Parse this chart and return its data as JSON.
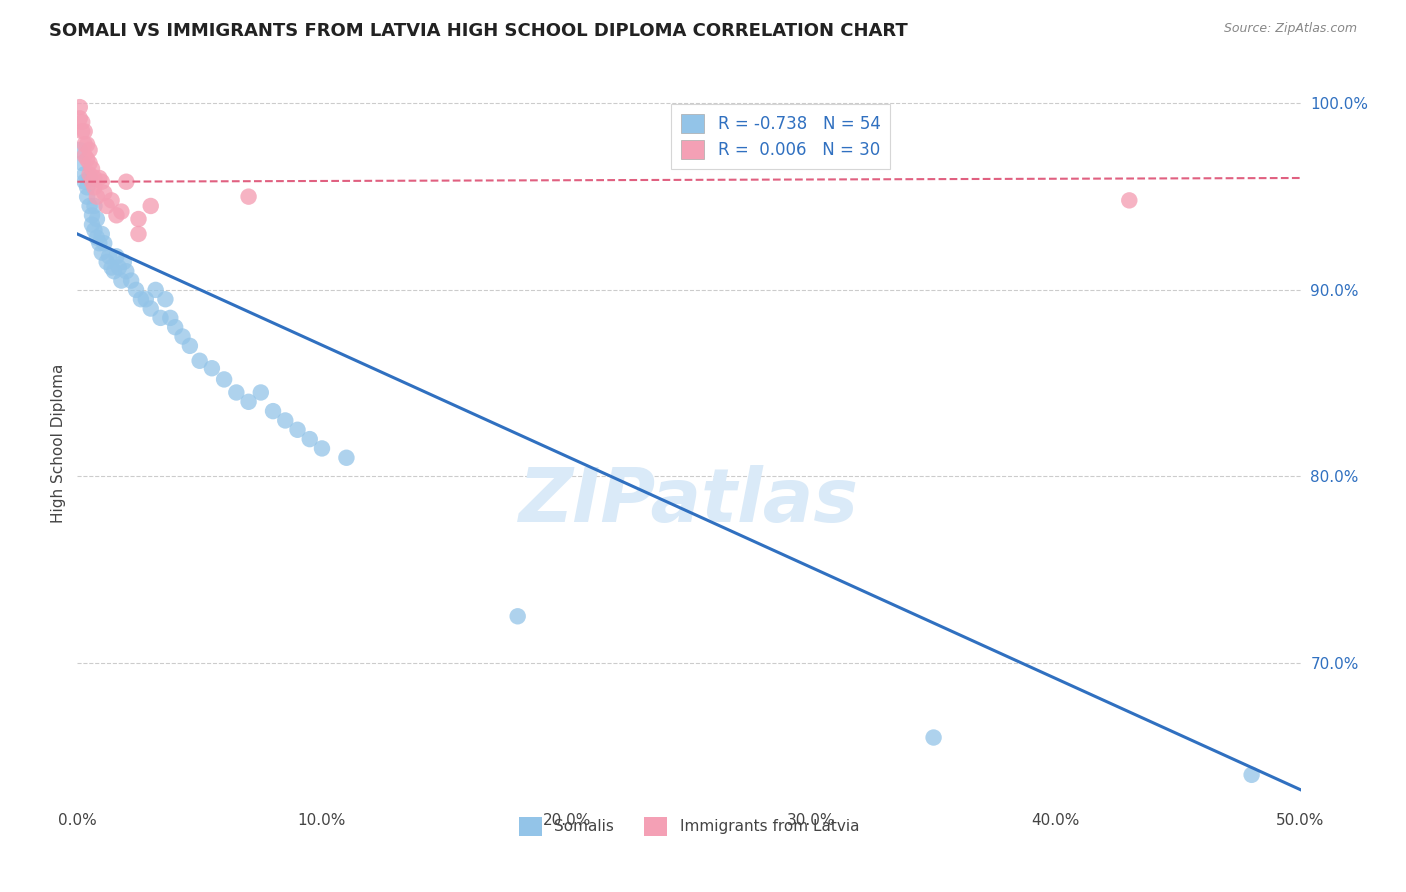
{
  "title": "SOMALI VS IMMIGRANTS FROM LATVIA HIGH SCHOOL DIPLOMA CORRELATION CHART",
  "source": "Source: ZipAtlas.com",
  "ylabel": "High School Diploma",
  "r_somali": -0.738,
  "n_somali": 54,
  "r_latvia": 0.006,
  "n_latvia": 30,
  "xlim": [
    0.0,
    0.5
  ],
  "ylim": [
    0.625,
    1.01
  ],
  "xticks": [
    0.0,
    0.1,
    0.2,
    0.3,
    0.4,
    0.5
  ],
  "xticklabels": [
    "0.0%",
    "10.0%",
    "20.0%",
    "30.0%",
    "40.0%",
    "50.0%"
  ],
  "yticks_right": [
    0.7,
    0.8,
    0.9,
    1.0
  ],
  "yticklabels_right": [
    "70.0%",
    "80.0%",
    "90.0%",
    "100.0%"
  ],
  "grid_color": "#cccccc",
  "blue_color": "#93c4e8",
  "pink_color": "#f4a0b5",
  "blue_line_color": "#3070c0",
  "pink_line_color": "#e06080",
  "watermark_color": "#daeaf8",
  "blue_trend_x0": 0.0,
  "blue_trend_y0": 0.93,
  "blue_trend_x1": 0.5,
  "blue_trend_y1": 0.632,
  "pink_trend_x0": 0.0,
  "pink_trend_y0": 0.958,
  "pink_trend_x1": 0.5,
  "pink_trend_y1": 0.96,
  "somali_x": [
    0.001,
    0.002,
    0.003,
    0.003,
    0.004,
    0.004,
    0.005,
    0.005,
    0.006,
    0.006,
    0.007,
    0.007,
    0.008,
    0.008,
    0.009,
    0.01,
    0.01,
    0.011,
    0.012,
    0.013,
    0.014,
    0.015,
    0.016,
    0.017,
    0.018,
    0.019,
    0.02,
    0.022,
    0.024,
    0.026,
    0.028,
    0.03,
    0.032,
    0.034,
    0.036,
    0.038,
    0.04,
    0.043,
    0.046,
    0.05,
    0.055,
    0.06,
    0.065,
    0.07,
    0.075,
    0.08,
    0.085,
    0.09,
    0.095,
    0.1,
    0.11,
    0.18,
    0.35,
    0.48
  ],
  "somali_y": [
    0.975,
    0.968,
    0.962,
    0.958,
    0.955,
    0.95,
    0.96,
    0.945,
    0.94,
    0.935,
    0.945,
    0.932,
    0.928,
    0.938,
    0.925,
    0.93,
    0.92,
    0.925,
    0.915,
    0.918,
    0.912,
    0.91,
    0.918,
    0.912,
    0.905,
    0.915,
    0.91,
    0.905,
    0.9,
    0.895,
    0.895,
    0.89,
    0.9,
    0.885,
    0.895,
    0.885,
    0.88,
    0.875,
    0.87,
    0.862,
    0.858,
    0.852,
    0.845,
    0.84,
    0.845,
    0.835,
    0.83,
    0.825,
    0.82,
    0.815,
    0.81,
    0.725,
    0.66,
    0.64
  ],
  "latvia_x": [
    0.001,
    0.001,
    0.002,
    0.002,
    0.003,
    0.003,
    0.003,
    0.004,
    0.004,
    0.005,
    0.005,
    0.005,
    0.006,
    0.006,
    0.007,
    0.007,
    0.008,
    0.009,
    0.01,
    0.011,
    0.012,
    0.014,
    0.016,
    0.018,
    0.02,
    0.025,
    0.025,
    0.03,
    0.07,
    0.43
  ],
  "latvia_y": [
    0.998,
    0.992,
    0.99,
    0.985,
    0.985,
    0.978,
    0.972,
    0.978,
    0.97,
    0.975,
    0.968,
    0.962,
    0.965,
    0.958,
    0.96,
    0.955,
    0.95,
    0.96,
    0.958,
    0.952,
    0.945,
    0.948,
    0.94,
    0.942,
    0.958,
    0.938,
    0.93,
    0.945,
    0.95,
    0.948
  ]
}
